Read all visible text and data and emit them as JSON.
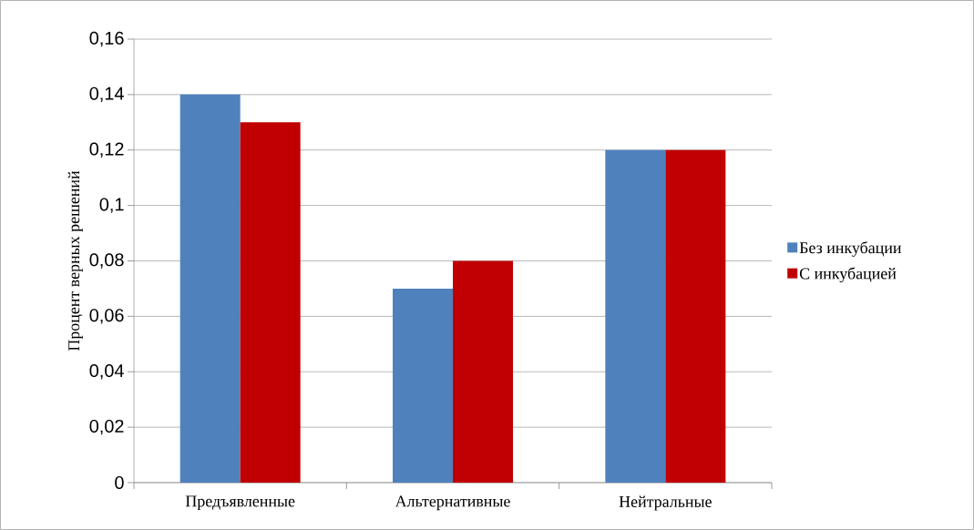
{
  "chart_data": {
    "type": "bar",
    "ylabel": "Процент верных решений",
    "categories": [
      "Предъявленные",
      "Альтернативные",
      "Нейтральные"
    ],
    "series": [
      {
        "name": "Без инкубации",
        "color": "#4f81bd",
        "values": [
          0.14,
          0.07,
          0.12
        ]
      },
      {
        "name": "С инкубацией",
        "color": "#c00000",
        "values": [
          0.13,
          0.08,
          0.12
        ]
      }
    ],
    "ylim": [
      0,
      0.16
    ],
    "yticks": [
      0,
      {
        "value": 0.02,
        "label": "0,02"
      },
      {
        "value": 0.04,
        "label": "0,04"
      },
      {
        "value": 0.06,
        "label": "0,06"
      },
      {
        "value": 0.08,
        "label": "0,08"
      },
      {
        "value": 0.1,
        "label": "0,1"
      },
      {
        "value": 0.12,
        "label": "0,12"
      },
      {
        "value": 0.14,
        "label": "0,14"
      },
      {
        "value": 0.16,
        "label": "0,16"
      }
    ],
    "grid": "y",
    "legend": "right"
  }
}
